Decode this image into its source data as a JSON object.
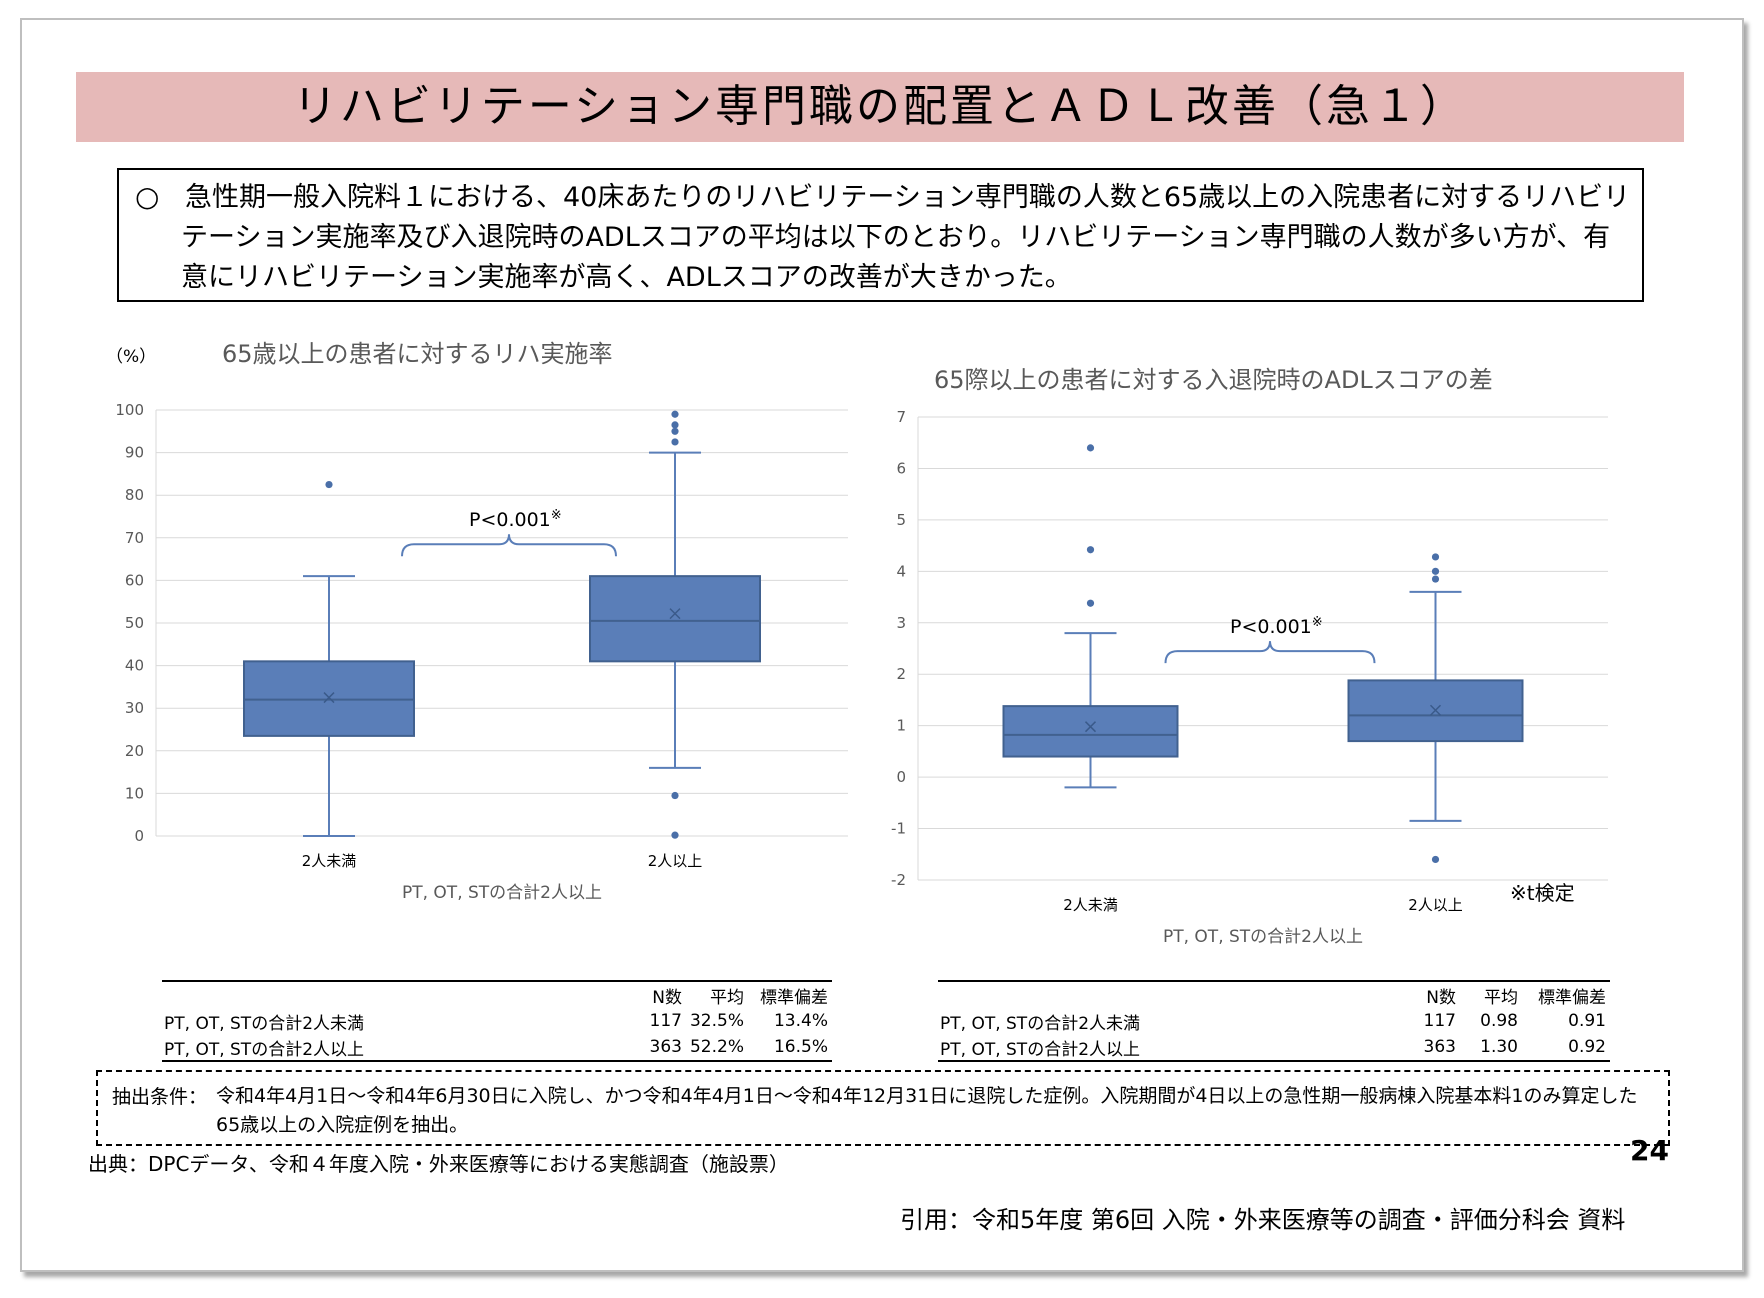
{
  "title": "リハビリテーション専門職の配置とＡＤＬ改善（急１）",
  "summary": {
    "bullet": "○",
    "text": "急性期一般入院料１における、40床あたりのリハビリテーション専門職の人数と65歳以上の入院患者に対するリハビリテーション実施率及び入退院時のADLスコアの平均は以下のとおり。リハビリテーション専門職の人数が多い方が、有意にリハビリテーション実施率が高く、ADLスコアの改善が大きかった。"
  },
  "chart_data": [
    {
      "type": "box",
      "title": "65歳以上の患者に対するリハ実施率",
      "ylabel": "（%）",
      "xlabel": "PT, OT, STの合計2人以上",
      "ylim": [
        0,
        100
      ],
      "yticks": [
        0,
        10,
        20,
        30,
        40,
        50,
        60,
        70,
        80,
        90,
        100
      ],
      "grid": true,
      "categories": [
        "2人未満",
        "2人以上"
      ],
      "boxes": [
        {
          "category": "2人未満",
          "min": 0,
          "q1": 23.5,
          "median": 32,
          "q3": 41,
          "max": 61,
          "mean": 32.5,
          "outliers": [
            82.5
          ]
        },
        {
          "category": "2人以上",
          "min": 16,
          "q1": 41,
          "median": 50.5,
          "q3": 61,
          "max": 90,
          "mean": 52.2,
          "outliers": [
            99,
            96.5,
            95,
            92.5,
            9.5,
            0.2
          ]
        }
      ],
      "annotation": {
        "text": "P<0.001",
        "mark": "※"
      },
      "box_color": "#5a7eb8"
    },
    {
      "type": "box",
      "title": "65際以上の患者に対する入退院時のADLスコアの差",
      "ylabel": "",
      "xlabel": "PT, OT, STの合計2人以上",
      "ylim": [
        -2,
        7
      ],
      "yticks": [
        -2,
        -1,
        0,
        1,
        2,
        3,
        4,
        5,
        6,
        7
      ],
      "grid": true,
      "categories": [
        "2人未満",
        "2人以上"
      ],
      "boxes": [
        {
          "category": "2人未満",
          "min": -0.2,
          "q1": 0.4,
          "median": 0.82,
          "q3": 1.38,
          "max": 2.8,
          "mean": 0.98,
          "outliers": [
            6.4,
            4.42,
            3.38
          ]
        },
        {
          "category": "2人以上",
          "min": -0.85,
          "q1": 0.7,
          "median": 1.2,
          "q3": 1.88,
          "max": 3.6,
          "mean": 1.3,
          "outliers": [
            4.28,
            4.0,
            3.85,
            -1.6
          ]
        }
      ],
      "annotation": {
        "text": "P<0.001",
        "mark": "※"
      },
      "footnote": "※t検定",
      "box_color": "#5a7eb8"
    }
  ],
  "tables": {
    "headers": [
      "N数",
      "平均",
      "標準偏差"
    ],
    "left": {
      "rows": [
        {
          "label": "PT, OT, STの合計2人未満",
          "n": "117",
          "mean": "32.5%",
          "sd": "13.4%"
        },
        {
          "label": "PT, OT, STの合計2人以上",
          "n": "363",
          "mean": "52.2%",
          "sd": "16.5%"
        }
      ]
    },
    "right": {
      "rows": [
        {
          "label": "PT, OT, STの合計2人未満",
          "n": "117",
          "mean": "0.98",
          "sd": "0.91"
        },
        {
          "label": "PT, OT, STの合計2人以上",
          "n": "363",
          "mean": "1.30",
          "sd": "0.92"
        }
      ]
    }
  },
  "conditions": {
    "label": "抽出条件：",
    "text": "令和4年4月1日～令和4年6月30日に入院し、かつ令和4年4月1日～令和4年12月31日に退院した症例。入院期間が4日以上の急性期一般病棟入院基本料1のみ算定した65歳以上の入院症例を抽出。"
  },
  "source": "出典：DPCデータ、令和４年度入院・外来医療等における実態調査（施設票）",
  "page_number": "24",
  "citation": "引用：令和5年度 第6回 入院・外来医療等の調査・評価分科会 資料"
}
